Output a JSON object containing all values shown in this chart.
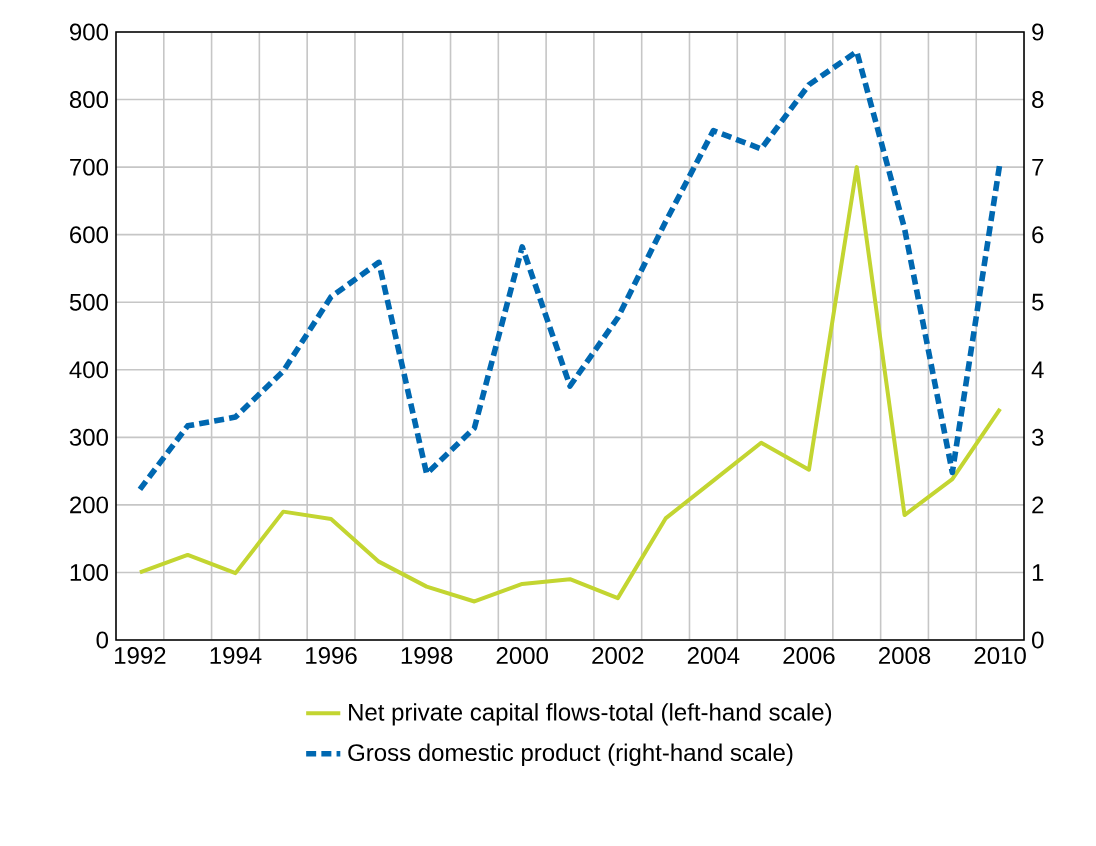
{
  "chart_data": {
    "type": "line",
    "x": [
      1992,
      1993,
      1994,
      1995,
      1996,
      1997,
      1998,
      1999,
      2000,
      2001,
      2002,
      2003,
      2004,
      2005,
      2006,
      2007,
      2008,
      2009,
      2010
    ],
    "series": [
      {
        "name": "Net private capital flows-total (left-hand scale)",
        "color": "#c3d531",
        "line_style": "solid",
        "values": [
          100,
          126,
          99,
          190,
          179,
          116,
          79,
          57,
          83,
          90,
          62,
          180,
          236,
          292,
          252,
          700,
          185,
          238,
          342
        ]
      },
      {
        "name": "Gross domestic product (right-hand scale)",
        "color": "#0068b1",
        "line_style": "dashed",
        "axis": "y2",
        "values": [
          2.23,
          3.17,
          3.3,
          3.98,
          5.08,
          5.59,
          2.46,
          3.14,
          5.82,
          3.76,
          4.77,
          6.19,
          7.54,
          7.27,
          8.22,
          8.71,
          6.09,
          2.48,
          7.08
        ]
      }
    ],
    "xlim": [
      1991.5,
      2010.5
    ],
    "xticks": [
      1992,
      1994,
      1996,
      1998,
      2000,
      2002,
      2004,
      2006,
      2008,
      2010,
      {
        "value": 1992.5,
        "label": null
      },
      {
        "value": 1993.5,
        "label": null
      },
      {
        "value": 1994.5,
        "label": null
      },
      {
        "value": 1995.5,
        "label": null
      },
      {
        "value": 1996.5,
        "label": null
      },
      {
        "value": 1997.5,
        "label": null
      },
      {
        "value": 1998.5,
        "label": null
      },
      {
        "value": 1999.5,
        "label": null
      },
      {
        "value": 2000.5,
        "label": null
      },
      {
        "value": 2001.5,
        "label": null
      },
      {
        "value": 2002.5,
        "label": null
      },
      {
        "value": 2003.5,
        "label": null
      },
      {
        "value": 2004.5,
        "label": null
      },
      {
        "value": 2005.5,
        "label": null
      },
      {
        "value": 2006.5,
        "label": null
      },
      {
        "value": 2007.5,
        "label": null
      },
      {
        "value": 2008.5,
        "label": null
      },
      {
        "value": 2009.5,
        "label": null
      }
    ],
    "ylim": [
      0,
      900
    ],
    "yticks": [
      0,
      100,
      200,
      300,
      400,
      500,
      600,
      700,
      800,
      900
    ],
    "y2lim": [
      0,
      9
    ],
    "y2ticks": [
      0,
      1,
      2,
      3,
      4,
      5,
      6,
      7,
      8,
      9
    ],
    "grid": true,
    "legend": "bottom",
    "marker": "none"
  }
}
